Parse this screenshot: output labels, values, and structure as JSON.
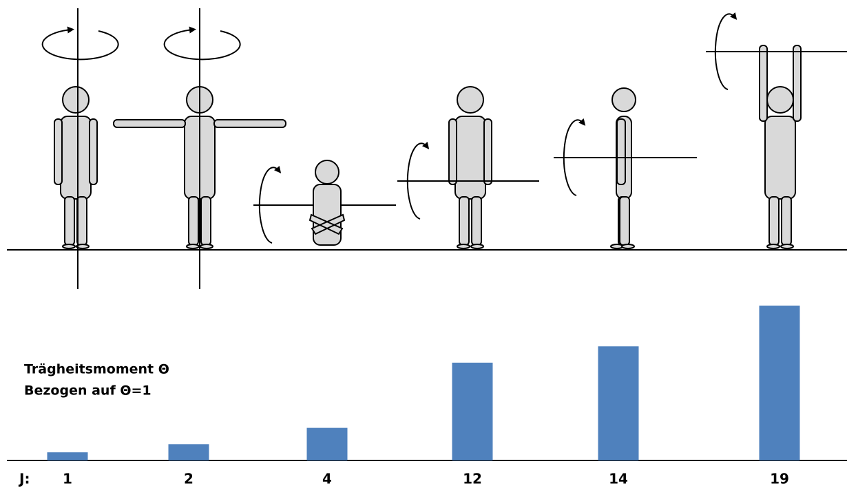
{
  "chart_data": {
    "type": "bar",
    "title_lines": [
      "Trägheitsmoment Θ",
      "Bezogen auf Θ=1"
    ],
    "label_prefix": "J:",
    "values": [
      1,
      2,
      4,
      12,
      14,
      19
    ],
    "color": "#4f81bd"
  }
}
